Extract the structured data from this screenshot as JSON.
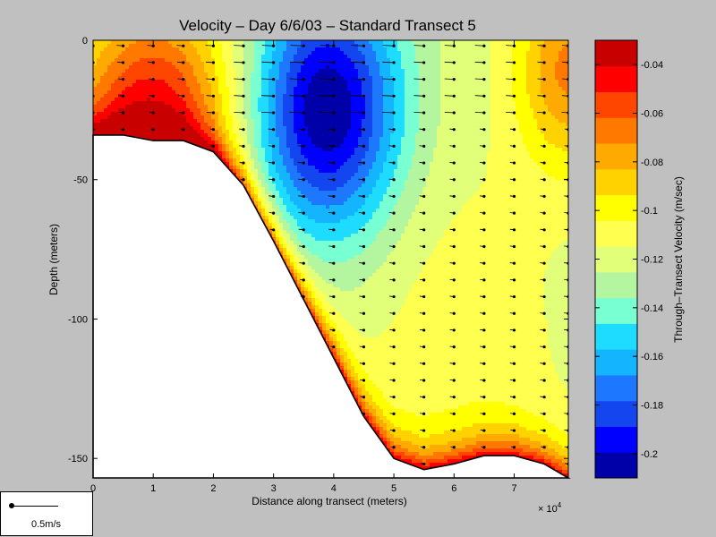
{
  "chart_data": {
    "type": "heatmap",
    "title": "Velocity – Day 6/6/03 – Standard Transect 5",
    "xlabel": "Distance along transect (meters)",
    "ylabel": "Depth (meters)",
    "x_multiplier_label": "× 10",
    "x_multiplier_exponent": "4",
    "xlim": [
      0,
      7.9
    ],
    "ylim": [
      -157,
      0
    ],
    "x_ticks": [
      "0",
      "1",
      "2",
      "3",
      "4",
      "5",
      "6",
      "7"
    ],
    "y_ticks": [
      "0",
      "-50",
      "-100",
      "-150"
    ],
    "colorbar": {
      "label": "Through–Transect Velocity (m/sec)",
      "range": [
        -0.21,
        -0.03
      ],
      "ticks": [
        "-0.04",
        "-0.06",
        "-0.08",
        "-0.1",
        "-0.12",
        "-0.14",
        "-0.16",
        "-0.18",
        "-0.2"
      ],
      "colors": [
        "#0000a8",
        "#0000ff",
        "#1446f0",
        "#1e78ff",
        "#14b4ff",
        "#1edcff",
        "#78ffd2",
        "#b4f5a0",
        "#e1ff78",
        "#ffff50",
        "#ffff00",
        "#ffd200",
        "#ffaa00",
        "#ff7800",
        "#ff4600",
        "#ff0000",
        "#c80000"
      ]
    },
    "bottom_profile": {
      "x": [
        0,
        0.5,
        1.0,
        1.5,
        2.0,
        2.5,
        3.0,
        3.5,
        4.0,
        4.5,
        5.0,
        5.5,
        6.0,
        6.5,
        7.0,
        7.5,
        7.9
      ],
      "depth": [
        -34,
        -34,
        -36,
        -36,
        -40,
        -52,
        -72,
        -93,
        -114,
        -135,
        -150,
        -154,
        -152,
        -149,
        -149,
        -152,
        -157
      ]
    },
    "stations_x": [
      0,
      0.5,
      1.0,
      1.5,
      2.0,
      2.5,
      3.0,
      3.5,
      4.0,
      4.5,
      5.0,
      5.5,
      6.0,
      6.5,
      7.0,
      7.5,
      7.9
    ],
    "measurement_depth_step": 6,
    "vector_scale_label": "0.5m/s"
  }
}
